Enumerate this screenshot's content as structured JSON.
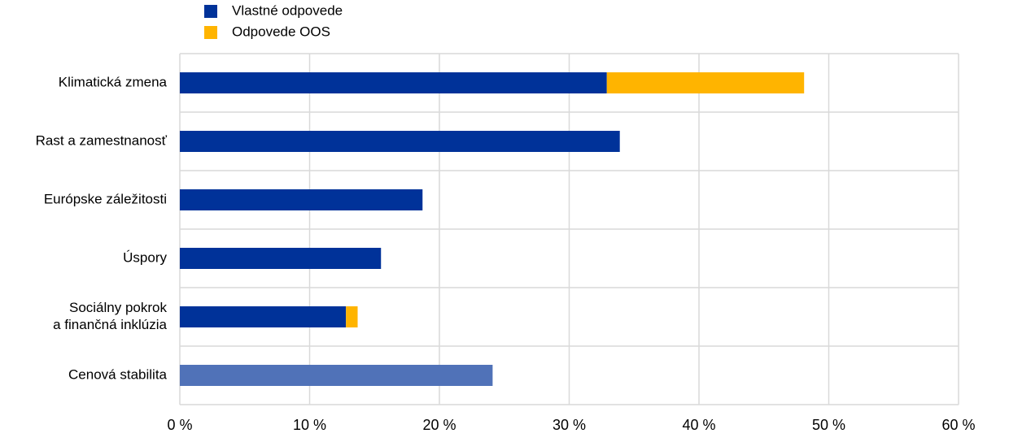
{
  "chart_data": {
    "type": "bar",
    "orientation": "horizontal",
    "stacked": true,
    "categories": [
      "Klimatická zmena",
      "Rast a zamestnanosť",
      "Európske záležitosti",
      "Úspory",
      [
        "Sociálny pokrok",
        "a finančná inklúzia"
      ],
      "Cenová stabilita"
    ],
    "series": [
      {
        "name": "Vlastné odpovede",
        "color": "#003299",
        "colors": [
          "#003299",
          "#003299",
          "#003299",
          "#003299",
          "#003299",
          "#5072b8"
        ],
        "values": [
          32.9,
          33.9,
          18.7,
          15.5,
          12.8,
          24.1
        ]
      },
      {
        "name": "Odpovede OOS",
        "color": "#ffb400",
        "values": [
          15.2,
          null,
          null,
          null,
          0.9,
          null
        ]
      }
    ],
    "xlim": [
      0,
      60
    ],
    "xticks": [
      {
        "value": 0,
        "label": "0 %"
      },
      {
        "value": 10,
        "label": "10 %"
      },
      {
        "value": 20,
        "label": "20 %"
      },
      {
        "value": 30,
        "label": "30 %"
      },
      {
        "value": 40,
        "label": "40 %"
      },
      {
        "value": 50,
        "label": "50 %"
      },
      {
        "value": 60,
        "label": "60 %"
      }
    ],
    "grid": true,
    "legend": "top"
  }
}
